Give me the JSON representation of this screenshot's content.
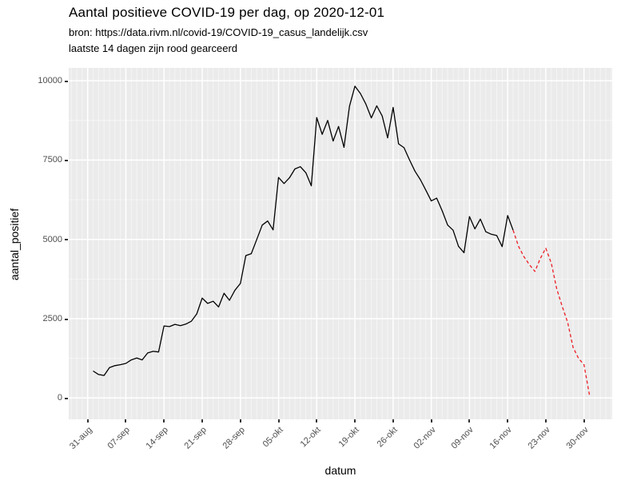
{
  "header": {
    "title": "Aantal positieve COVID-19 per dag, op 2020-12-01",
    "subtitle_source": "bron: https://data.rivm.nl/covid-19/COVID-19_casus_landelijk.csv",
    "subtitle_note": "laatste 14 dagen zijn rood gearceerd"
  },
  "chart_data": {
    "type": "line",
    "title": "Aantal positieve COVID-19 per dag, op 2020-12-01",
    "xlabel": "datum",
    "ylabel": "aantal_positief",
    "legend_position": "none",
    "grid": true,
    "ylim": [
      0,
      10000
    ],
    "y_ticks": [
      0,
      2500,
      5000,
      7500,
      10000
    ],
    "y_tick_labels": [
      "0",
      "2500",
      "5000",
      "7500",
      "10000"
    ],
    "y_minor_ticks": [
      1250,
      3750,
      6250,
      8750
    ],
    "x_tick_labels": [
      "31-aug",
      "07-sep",
      "14-sep",
      "21-sep",
      "28-sep",
      "05-okt",
      "12-okt",
      "19-okt",
      "26-okt",
      "02-nov",
      "09-nov",
      "16-nov",
      "23-nov",
      "30-nov"
    ],
    "x_tick_days": [
      0,
      7,
      14,
      21,
      28,
      35,
      42,
      49,
      56,
      63,
      70,
      77,
      84,
      91
    ],
    "colors": {
      "panel_bg": "#EBEBEB",
      "grid": "#FFFFFF",
      "black_line": "#000000",
      "red_line": "#ED1C24",
      "tick_text": "#4D4D4D"
    },
    "series": [
      {
        "name": "aantal_positief",
        "color": "#000000",
        "style": "solid",
        "start_day": 1,
        "dates": [
          "01-sep",
          "02-sep",
          "03-sep",
          "04-sep",
          "05-sep",
          "06-sep",
          "07-sep",
          "08-sep",
          "09-sep",
          "10-sep",
          "11-sep",
          "12-sep",
          "13-sep",
          "14-sep",
          "15-sep",
          "16-sep",
          "17-sep",
          "18-sep",
          "19-sep",
          "20-sep",
          "21-sep",
          "22-sep",
          "23-sep",
          "24-sep",
          "25-sep",
          "26-sep",
          "27-sep",
          "28-sep",
          "29-sep",
          "30-sep",
          "01-okt",
          "02-okt",
          "03-okt",
          "04-okt",
          "05-okt",
          "06-okt",
          "07-okt",
          "08-okt",
          "09-okt",
          "10-okt",
          "11-okt",
          "12-okt",
          "13-okt",
          "14-okt",
          "15-okt",
          "16-okt",
          "17-okt",
          "18-okt",
          "19-okt",
          "20-okt",
          "21-okt",
          "22-okt",
          "23-okt",
          "24-okt",
          "25-okt",
          "26-okt",
          "27-okt",
          "28-okt",
          "29-okt",
          "30-okt",
          "31-okt",
          "01-nov",
          "02-nov",
          "03-nov",
          "04-nov",
          "05-nov",
          "06-nov",
          "07-nov",
          "08-nov",
          "09-nov",
          "10-nov",
          "11-nov",
          "12-nov",
          "13-nov",
          "14-nov",
          "15-nov",
          "16-nov",
          "17-nov"
        ],
        "values": [
          850,
          740,
          710,
          960,
          1020,
          1050,
          1090,
          1200,
          1260,
          1200,
          1420,
          1470,
          1450,
          2270,
          2250,
          2320,
          2280,
          2330,
          2420,
          2650,
          3150,
          2980,
          3050,
          2870,
          3300,
          3080,
          3400,
          3610,
          4490,
          4550,
          5000,
          5450,
          5580,
          5300,
          6950,
          6760,
          6940,
          7220,
          7290,
          7100,
          6690,
          8840,
          8310,
          8750,
          8100,
          8560,
          7900,
          9200,
          9830,
          9600,
          9270,
          8830,
          9210,
          8890,
          8200,
          9160,
          8010,
          7890,
          7510,
          7150,
          6880,
          6550,
          6210,
          6300,
          5900,
          5450,
          5290,
          4780,
          4580,
          5720,
          5330,
          5640,
          5240,
          5160,
          5120,
          4770,
          5750,
          5290
        ]
      },
      {
        "name": "laatste 14 dagen (rood gearceerd)",
        "color": "#ED1C24",
        "style": "dashed",
        "start_day": 78,
        "dates": [
          "17-nov",
          "18-nov",
          "19-nov",
          "20-nov",
          "21-nov",
          "22-nov",
          "23-nov",
          "24-nov",
          "25-nov",
          "26-nov",
          "27-nov",
          "28-nov",
          "29-nov",
          "30-nov",
          "01-dec"
        ],
        "values": [
          5290,
          4780,
          4450,
          4200,
          3990,
          4400,
          4720,
          4250,
          3440,
          2890,
          2390,
          1590,
          1250,
          1050,
          100
        ]
      }
    ]
  }
}
